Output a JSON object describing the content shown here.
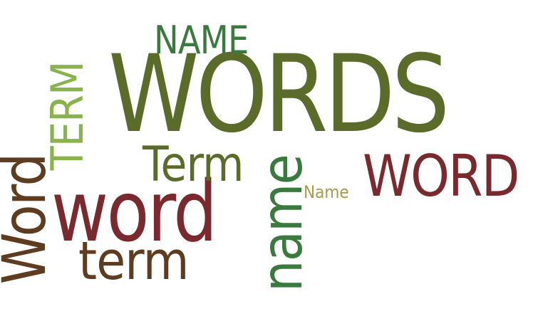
{
  "colors": {
    "olive": "#5a6b2a",
    "maroon": "#7a2a2f",
    "brown": "#5e3c20",
    "light_green": "#8ab34c",
    "forest_green": "#3a7a3e",
    "tan": "#a89a4a"
  },
  "words": [
    {
      "key": "WORDS",
      "text": "WORDS",
      "color": "#5a6b2a",
      "orientation": "horizontal"
    },
    {
      "key": "word",
      "text": "word",
      "color": "#7a2a2f",
      "orientation": "horizontal"
    },
    {
      "key": "WORD",
      "text": "WORD",
      "color": "#7a2a2f",
      "orientation": "horizontal"
    },
    {
      "key": "Word",
      "text": "Word",
      "color": "#5e3c20",
      "orientation": "vertical"
    },
    {
      "key": "TERM",
      "text": "TERM",
      "color": "#8ab34c",
      "orientation": "vertical"
    },
    {
      "key": "Term",
      "text": "Term",
      "color": "#5a6b2a",
      "orientation": "horizontal"
    },
    {
      "key": "term",
      "text": "term",
      "color": "#5e3c20",
      "orientation": "horizontal"
    },
    {
      "key": "NAME",
      "text": "NAME",
      "color": "#3a7a3e",
      "orientation": "horizontal"
    },
    {
      "key": "name",
      "text": "name",
      "color": "#3a7a3e",
      "orientation": "vertical"
    },
    {
      "key": "Name",
      "text": "Name",
      "color": "#a89a4a",
      "orientation": "horizontal"
    }
  ]
}
